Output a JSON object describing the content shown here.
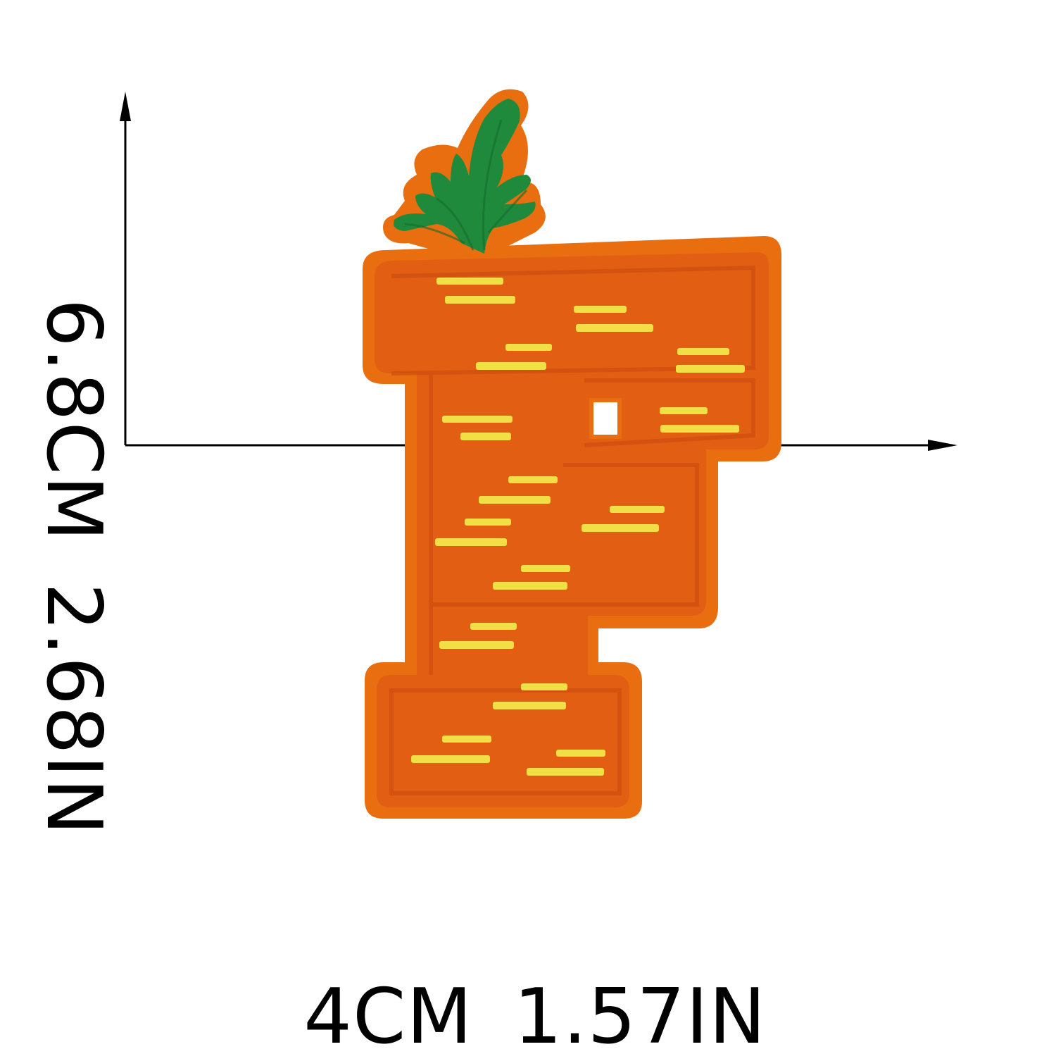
{
  "dimensions": {
    "height": {
      "cm": "6.8CM",
      "in": "2.68IN"
    },
    "width": {
      "cm": "4CM",
      "in": "1.57IN"
    }
  },
  "patch": {
    "letter": "F",
    "subject": "carrot-letter-patch",
    "colors": {
      "border": "#e96e10",
      "body": "#e25e12",
      "stitch_shadow": "#c9480d",
      "highlight": "#f2df45",
      "leaves": "#1f8a3c",
      "leaves_dark": "#156b2c"
    }
  },
  "colors": {
    "background": "#ffffff",
    "axis": "#000000",
    "text": "#000000"
  }
}
